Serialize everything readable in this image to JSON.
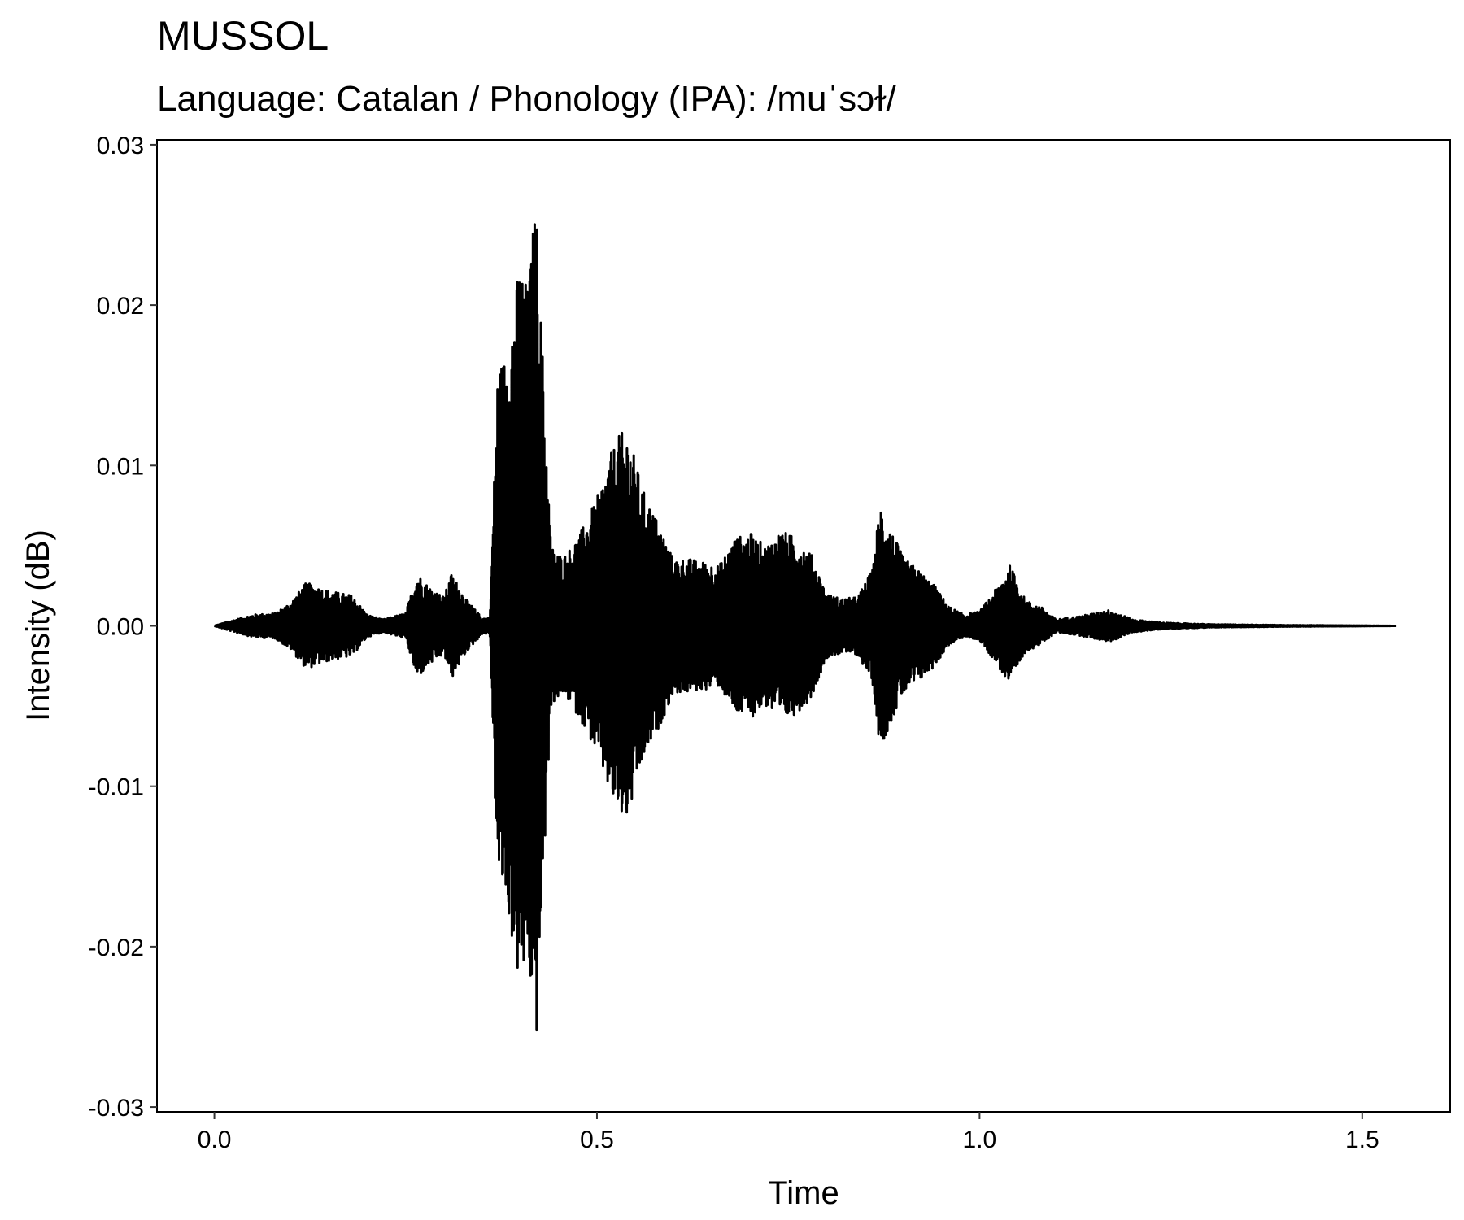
{
  "chart_data": {
    "type": "line",
    "title": "MUSSOL",
    "subtitle": "Language: Catalan / Phonology (IPA): /muˈsɔɫ/",
    "xlabel": "Time",
    "ylabel": "Intensity (dB)",
    "xlim": [
      -0.075,
      1.615
    ],
    "ylim": [
      -0.0303,
      0.0303
    ],
    "xticks": [
      0.0,
      0.5,
      1.0,
      1.5
    ],
    "xtick_labels": [
      "0.0",
      "0.5",
      "1.0",
      "1.5"
    ],
    "yticks": [
      0.03,
      0.02,
      0.01,
      0.0,
      -0.01,
      -0.02,
      -0.03
    ],
    "ytick_labels": [
      "0.03",
      "0.02",
      "0.01",
      "0.00",
      "-0.01",
      "-0.02",
      "-0.03"
    ],
    "grid": false,
    "legend": "none",
    "line_color": "#000000",
    "series": [
      {
        "x_start": 0.0,
        "x_end": 1.545,
        "envelope_time": [
          0.0,
          0.02,
          0.05,
          0.08,
          0.1,
          0.12,
          0.15,
          0.18,
          0.2,
          0.22,
          0.25,
          0.265,
          0.28,
          0.3,
          0.31,
          0.33,
          0.35,
          0.36,
          0.37,
          0.38,
          0.39,
          0.4,
          0.41,
          0.42,
          0.43,
          0.44,
          0.45,
          0.46,
          0.48,
          0.5,
          0.52,
          0.53,
          0.54,
          0.56,
          0.58,
          0.6,
          0.62,
          0.64,
          0.66,
          0.68,
          0.7,
          0.72,
          0.74,
          0.76,
          0.78,
          0.8,
          0.82,
          0.84,
          0.86,
          0.87,
          0.88,
          0.9,
          0.92,
          0.94,
          0.96,
          0.98,
          1.0,
          1.02,
          1.04,
          1.06,
          1.08,
          1.1,
          1.13,
          1.17,
          1.2,
          1.24,
          1.3,
          1.4,
          1.545
        ],
        "envelope_amplitude": [
          0.0,
          0.0003,
          0.0007,
          0.0008,
          0.0015,
          0.0027,
          0.0022,
          0.0019,
          0.0007,
          0.0004,
          0.0008,
          0.0033,
          0.0025,
          0.0018,
          0.0033,
          0.0016,
          0.0005,
          0.0005,
          0.016,
          0.017,
          0.02,
          0.023,
          0.021,
          0.027,
          0.016,
          0.005,
          0.0045,
          0.0045,
          0.006,
          0.008,
          0.011,
          0.012,
          0.0122,
          0.0085,
          0.0065,
          0.0042,
          0.0042,
          0.004,
          0.0038,
          0.0055,
          0.0058,
          0.005,
          0.006,
          0.0055,
          0.0045,
          0.002,
          0.0017,
          0.0018,
          0.0035,
          0.0078,
          0.0065,
          0.0043,
          0.0035,
          0.0026,
          0.0012,
          0.0007,
          0.0009,
          0.0022,
          0.0038,
          0.0016,
          0.0012,
          0.0004,
          0.0006,
          0.001,
          0.0004,
          0.0002,
          0.0001,
          5e-05,
          0.0
        ]
      }
    ]
  }
}
